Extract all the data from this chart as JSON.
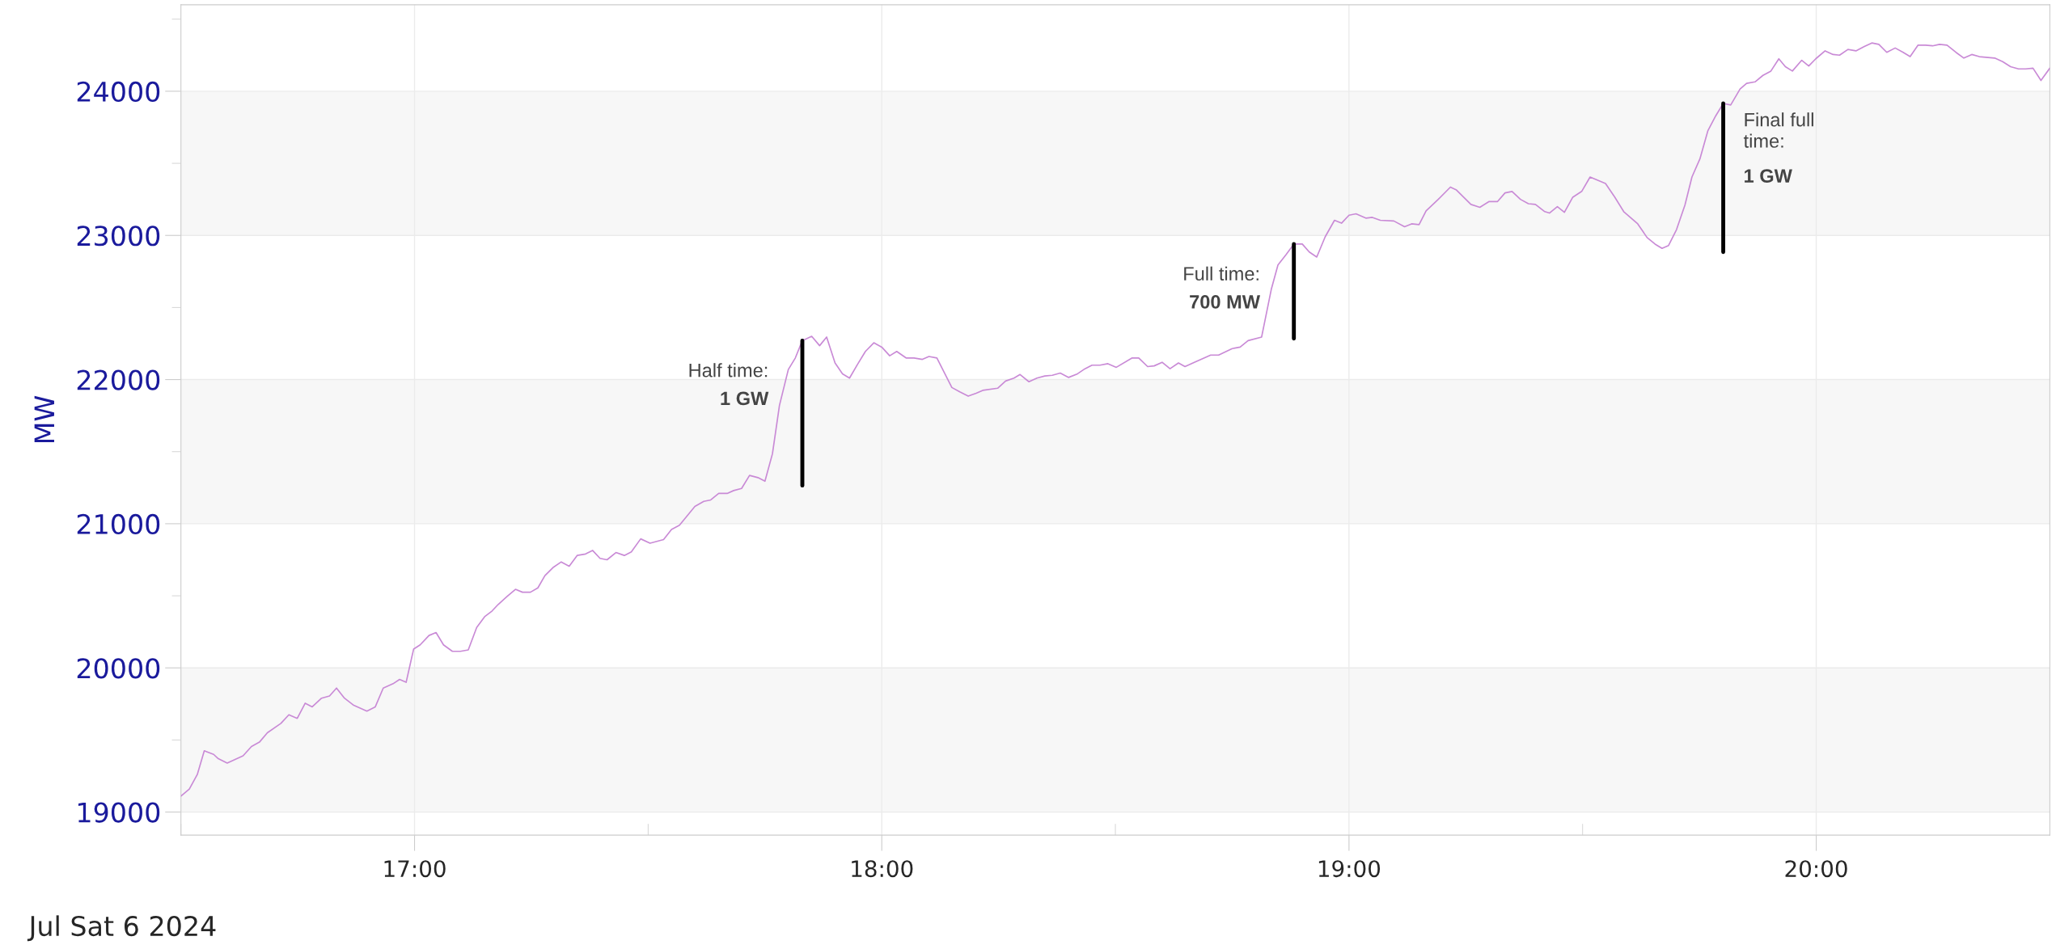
{
  "chart_data": {
    "type": "line",
    "ylabel": "MW",
    "xlim": [
      16.5,
      20.5
    ],
    "ylim": [
      18840,
      24600
    ],
    "xticks": [
      {
        "value": 17,
        "label": "17:00"
      },
      {
        "value": 18,
        "label": "18:00"
      },
      {
        "value": 19,
        "label": "19:00"
      },
      {
        "value": 20,
        "label": "20:00"
      },
      {
        "value": 16.5,
        "label": null
      },
      {
        "value": 17.5,
        "label": null
      },
      {
        "value": 18.5,
        "label": null
      },
      {
        "value": 19.5,
        "label": null
      }
    ],
    "yticks": [
      19000,
      20000,
      21000,
      22000,
      23000,
      24000,
      {
        "value": 19500,
        "label": null
      },
      {
        "value": 20500,
        "label": null
      },
      {
        "value": 21500,
        "label": null
      },
      {
        "value": 22500,
        "label": null
      },
      {
        "value": 23500,
        "label": null
      },
      {
        "value": 24500,
        "label": null
      }
    ],
    "grid": true,
    "marker": "none",
    "line_style": "solid",
    "bands": [
      {
        "axis": "y",
        "from": 19000,
        "to": 20000,
        "color": "#f7f7f7"
      },
      {
        "axis": "y",
        "from": 21000,
        "to": 22000,
        "color": "#f7f7f7"
      },
      {
        "axis": "y",
        "from": 23000,
        "to": 24000,
        "color": "#f7f7f7"
      }
    ],
    "series": [
      {
        "color": "#c98ad6",
        "x": [
          16.5,
          16.518,
          16.535,
          16.55,
          16.57,
          16.58,
          16.599,
          16.633,
          16.651,
          16.668,
          16.685,
          16.714,
          16.731,
          16.749,
          16.766,
          16.781,
          16.801,
          16.818,
          16.833,
          16.85,
          16.87,
          16.898,
          16.916,
          16.933,
          16.954,
          16.968,
          16.982,
          16.998,
          17.012,
          17.031,
          17.046,
          17.062,
          17.081,
          17.098,
          17.115,
          17.133,
          17.15,
          17.166,
          17.179,
          17.198,
          17.216,
          17.231,
          17.248,
          17.264,
          17.279,
          17.296,
          17.314,
          17.331,
          17.348,
          17.366,
          17.381,
          17.397,
          17.412,
          17.431,
          17.449,
          17.464,
          17.484,
          17.504,
          17.533,
          17.55,
          17.567,
          17.6,
          17.619,
          17.634,
          17.651,
          17.669,
          17.683,
          17.7,
          17.717,
          17.735,
          17.75,
          17.766,
          17.781,
          17.8,
          17.815,
          17.83,
          17.85,
          17.867,
          17.882,
          17.9,
          17.916,
          17.931,
          17.948,
          17.965,
          17.983,
          18.0,
          18.017,
          18.032,
          18.052,
          18.069,
          18.087,
          18.101,
          18.118,
          18.15,
          18.167,
          18.185,
          18.202,
          18.216,
          18.248,
          18.265,
          18.283,
          18.296,
          18.315,
          18.332,
          18.349,
          18.365,
          18.382,
          18.4,
          18.419,
          18.435,
          18.45,
          18.467,
          18.484,
          18.502,
          18.536,
          18.55,
          18.569,
          18.583,
          18.6,
          18.617,
          18.635,
          18.649,
          18.669,
          18.704,
          18.721,
          18.75,
          18.767,
          18.784,
          18.813,
          18.834,
          18.848,
          18.865,
          18.882,
          18.9,
          18.915,
          18.931,
          18.949,
          18.969,
          18.984,
          19.0,
          19.015,
          19.036,
          19.05,
          19.067,
          19.096,
          19.119,
          19.134,
          19.15,
          19.165,
          19.191,
          19.217,
          19.23,
          19.261,
          19.28,
          19.3,
          19.318,
          19.334,
          19.349,
          19.367,
          19.384,
          19.399,
          19.419,
          19.429,
          19.446,
          19.461,
          19.479,
          19.498,
          19.516,
          19.549,
          19.569,
          19.588,
          19.618,
          19.638,
          19.655,
          19.67,
          19.684,
          19.701,
          19.719,
          19.734,
          19.751,
          19.768,
          19.785,
          19.801,
          19.817,
          19.837,
          19.851,
          19.869,
          19.886,
          19.903,
          19.92,
          19.934,
          19.949,
          19.969,
          19.984,
          19.999,
          20.019,
          20.036,
          20.05,
          20.068,
          20.085,
          20.103,
          20.119,
          20.134,
          20.151,
          20.169,
          20.186,
          20.201,
          20.218,
          20.234,
          20.249,
          20.264,
          20.28,
          20.299,
          20.316,
          20.333,
          20.349,
          20.382,
          20.399,
          20.416,
          20.433,
          20.448,
          20.464,
          20.481,
          20.5
        ],
        "values": [
          19110,
          19160,
          19260,
          19425,
          19400,
          19370,
          19340,
          19390,
          19455,
          19485,
          19550,
          19615,
          19675,
          19650,
          19755,
          19730,
          19790,
          19805,
          19860,
          19790,
          19740,
          19700,
          19730,
          19860,
          19890,
          19920,
          19900,
          20130,
          20160,
          20225,
          20245,
          20160,
          20115,
          20115,
          20125,
          20280,
          20355,
          20395,
          20440,
          20495,
          20545,
          20525,
          20525,
          20555,
          20640,
          20695,
          20735,
          20705,
          20780,
          20790,
          20815,
          20760,
          20750,
          20800,
          20780,
          20805,
          20895,
          20865,
          20890,
          20960,
          20990,
          21120,
          21155,
          21165,
          21210,
          21210,
          21230,
          21245,
          21335,
          21320,
          21295,
          21485,
          21820,
          22070,
          22150,
          22270,
          22300,
          22235,
          22295,
          22115,
          22040,
          22010,
          22105,
          22195,
          22255,
          22225,
          22165,
          22195,
          22150,
          22150,
          22140,
          22160,
          22150,
          21945,
          21915,
          21885,
          21905,
          21925,
          21940,
          21990,
          22010,
          22035,
          21985,
          22010,
          22025,
          22030,
          22045,
          22015,
          22040,
          22075,
          22100,
          22100,
          22110,
          22085,
          22150,
          22150,
          22090,
          22095,
          22120,
          22075,
          22115,
          22090,
          22120,
          22170,
          22170,
          22215,
          22225,
          22270,
          22295,
          22630,
          22795,
          22865,
          22940,
          22940,
          22885,
          22850,
          22990,
          23105,
          23085,
          23140,
          23150,
          23120,
          23125,
          23105,
          23100,
          23060,
          23080,
          23075,
          23170,
          23250,
          23335,
          23315,
          23215,
          23195,
          23235,
          23235,
          23295,
          23305,
          23250,
          23220,
          23215,
          23165,
          23155,
          23200,
          23160,
          23265,
          23305,
          23405,
          23360,
          23265,
          23165,
          23080,
          22985,
          22940,
          22910,
          22930,
          23040,
          23210,
          23405,
          23530,
          23725,
          23830,
          23915,
          23905,
          24015,
          24055,
          24065,
          24110,
          24140,
          24225,
          24170,
          24140,
          24215,
          24175,
          24225,
          24280,
          24255,
          24250,
          24290,
          24280,
          24310,
          24335,
          24325,
          24270,
          24300,
          24270,
          24240,
          24320,
          24320,
          24315,
          24325,
          24320,
          24270,
          24230,
          24255,
          24240,
          24230,
          24205,
          24170,
          24155,
          24155,
          24160,
          24075,
          24160
        ]
      },
      {
        "color": "#000000",
        "x": [
          17.83,
          17.83
        ],
        "values": [
          21265,
          22270
        ]
      },
      {
        "color": "#000000",
        "x": [
          18.882,
          18.882
        ],
        "values": [
          22285,
          22940
        ]
      },
      {
        "color": "#000000",
        "x": [
          19.801,
          19.801
        ],
        "values": [
          22885,
          23915
        ]
      }
    ],
    "annotations": [
      {
        "text": "Half time:\n1 GW",
        "x": 17.83,
        "y": 22270
      },
      {
        "text": "Full time:\n700 MW",
        "x": 18.882,
        "y": 22940
      },
      {
        "text": "Final full\ntime:\n1 GW",
        "x": 19.801,
        "y": 23915
      },
      "Jul Sat 6 2024"
    ]
  }
}
